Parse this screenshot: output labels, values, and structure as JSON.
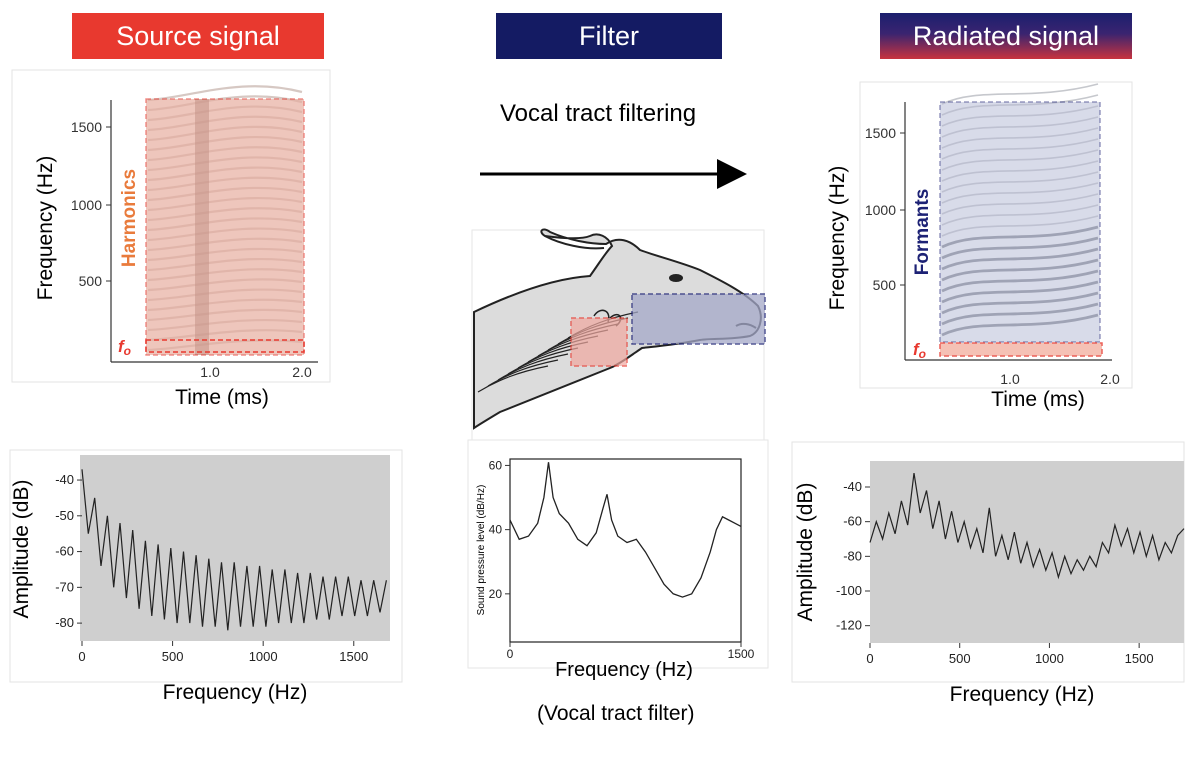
{
  "headers": {
    "source": "Source signal",
    "filter": "Filter",
    "radiated": "Radiated signal"
  },
  "filter_column": {
    "title": "Vocal tract filtering",
    "filter_caption": "(Vocal tract filter)"
  },
  "spectrogram_labels": {
    "source_region": "Harmonics",
    "radiated_region": "Formants",
    "fundamental": "f",
    "fundamental_sub": "o"
  },
  "colors": {
    "source_red": "#e8392f",
    "filter_navy": "#141b63",
    "harmonics_orange": "#e97b3c",
    "formants_navy": "#1d2275"
  },
  "chart_data": [
    {
      "id": "source-spectrogram",
      "type": "heatmap",
      "xlabel": "Time (ms)",
      "ylabel": "Frequency (Hz)",
      "xticks": [
        "1.0",
        "2.0"
      ],
      "yticks": [
        "500",
        "1000",
        "1500"
      ],
      "xlim": [
        0,
        2.2
      ],
      "ylim": [
        0,
        1700
      ]
    },
    {
      "id": "radiated-spectrogram",
      "type": "heatmap",
      "xlabel": "Time (ms)",
      "ylabel": "Frequency (Hz)",
      "xticks": [
        "1.0",
        "2.0"
      ],
      "yticks": [
        "500",
        "1000",
        "1500"
      ],
      "xlim": [
        0,
        2.2
      ],
      "ylim": [
        0,
        1700
      ]
    },
    {
      "id": "source-spectrum",
      "type": "line",
      "xlabel": "Frequency (Hz)",
      "ylabel": "Amplitude (dB)",
      "xticks": [
        "0",
        "500",
        "1000",
        "1500"
      ],
      "yticks": [
        "-40",
        "-50",
        "-60",
        "-70",
        "-80"
      ],
      "xlim": [
        0,
        1700
      ],
      "ylim": [
        -85,
        -33
      ],
      "series": [
        {
          "x": [
            0,
            35,
            70,
            105,
            140,
            175,
            210,
            245,
            280,
            315,
            350,
            385,
            420,
            455,
            490,
            525,
            560,
            595,
            630,
            665,
            700,
            735,
            770,
            805,
            840,
            875,
            910,
            945,
            980,
            1015,
            1050,
            1085,
            1120,
            1155,
            1190,
            1225,
            1260,
            1295,
            1330,
            1365,
            1400,
            1435,
            1470,
            1505,
            1540,
            1575,
            1610,
            1645,
            1680
          ],
          "values": [
            -37,
            -55,
            -45,
            -64,
            -50,
            -70,
            -52,
            -73,
            -54,
            -76,
            -57,
            -78,
            -58,
            -79,
            -59,
            -80,
            -60,
            -80,
            -61,
            -81,
            -62,
            -81,
            -63,
            -82,
            -63,
            -81,
            -64,
            -81,
            -64,
            -81,
            -65,
            -80,
            -65,
            -80,
            -66,
            -80,
            -66,
            -79,
            -67,
            -79,
            -67,
            -78,
            -67,
            -78,
            -68,
            -78,
            -68,
            -77,
            -68
          ]
        }
      ]
    },
    {
      "id": "vocal-tract-filter",
      "type": "line",
      "xlabel": "Frequency (Hz)",
      "ylabel": "Sound pressure level (dB/Hz)",
      "xticks": [
        "0",
        "1500"
      ],
      "yticks": [
        "20",
        "40",
        "60"
      ],
      "xlim": [
        0,
        1500
      ],
      "ylim": [
        5,
        62
      ],
      "series": [
        {
          "x": [
            0,
            60,
            120,
            180,
            220,
            250,
            280,
            320,
            380,
            440,
            500,
            560,
            600,
            630,
            660,
            700,
            760,
            820,
            880,
            940,
            1000,
            1060,
            1120,
            1180,
            1240,
            1300,
            1340,
            1380,
            1420,
            1460,
            1500
          ],
          "values": [
            43,
            37,
            38,
            42,
            50,
            61,
            50,
            45,
            42,
            37,
            35,
            39,
            46,
            51,
            43,
            38,
            36,
            37,
            33,
            28,
            23,
            20,
            19,
            20,
            25,
            33,
            40,
            44,
            43,
            42,
            41
          ]
        }
      ]
    },
    {
      "id": "radiated-spectrum",
      "type": "line",
      "xlabel": "Frequency (Hz)",
      "ylabel": "Amplitude (dB)",
      "xticks": [
        "0",
        "500",
        "1000",
        "1500"
      ],
      "yticks": [
        "-40",
        "-60",
        "-80",
        "-100",
        "-120"
      ],
      "xlim": [
        0,
        1750
      ],
      "ylim": [
        -130,
        -25
      ],
      "series": [
        {
          "x": [
            0,
            35,
            70,
            105,
            140,
            175,
            210,
            245,
            280,
            315,
            350,
            385,
            420,
            455,
            490,
            525,
            560,
            595,
            630,
            665,
            700,
            735,
            770,
            805,
            840,
            875,
            910,
            945,
            980,
            1015,
            1050,
            1085,
            1120,
            1155,
            1190,
            1225,
            1260,
            1295,
            1330,
            1365,
            1400,
            1435,
            1470,
            1505,
            1540,
            1575,
            1610,
            1645,
            1680,
            1715,
            1750
          ],
          "values": [
            -72,
            -60,
            -70,
            -55,
            -67,
            -48,
            -62,
            -32,
            -55,
            -42,
            -64,
            -48,
            -70,
            -54,
            -72,
            -60,
            -75,
            -64,
            -78,
            -52,
            -80,
            -68,
            -82,
            -66,
            -84,
            -72,
            -86,
            -76,
            -88,
            -78,
            -92,
            -80,
            -90,
            -82,
            -88,
            -80,
            -86,
            -72,
            -78,
            -62,
            -74,
            -64,
            -78,
            -66,
            -80,
            -68,
            -82,
            -72,
            -78,
            -68,
            -64
          ]
        }
      ]
    }
  ]
}
